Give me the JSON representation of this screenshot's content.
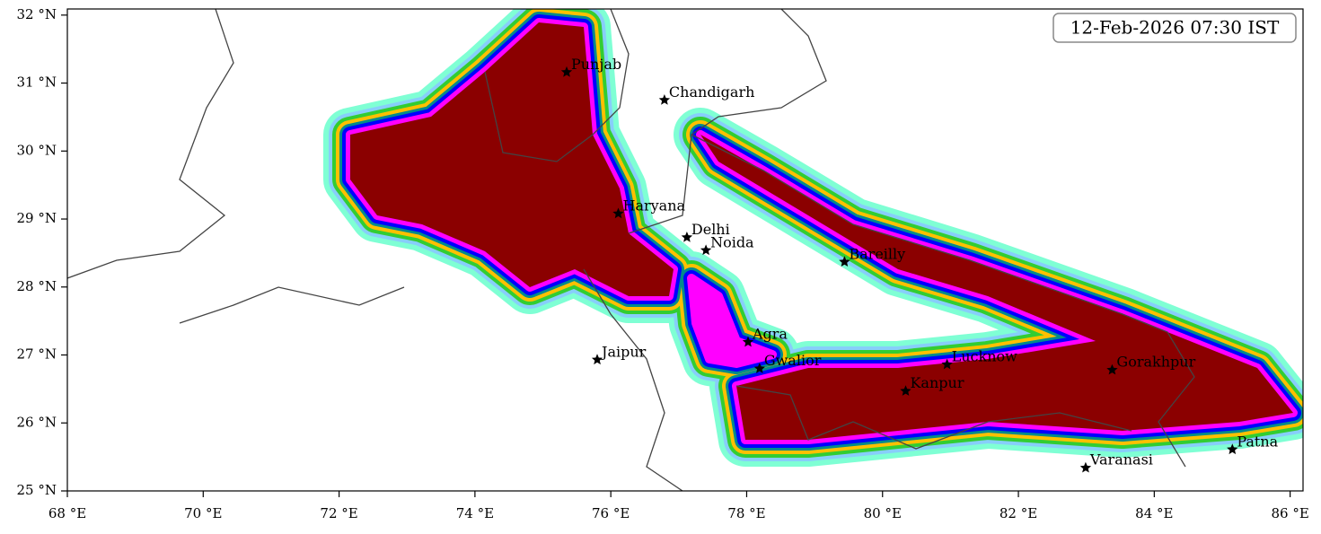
{
  "map": {
    "timestamp": "12-Feb-2026 07:30 IST",
    "xlim": [
      68,
      86.19
    ],
    "ylim": [
      25,
      32.09
    ],
    "xticks": [
      {
        "value": 68,
        "label": "68 °E"
      },
      {
        "value": 70,
        "label": "70 °E"
      },
      {
        "value": 72,
        "label": "72 °E"
      },
      {
        "value": 74,
        "label": "74 °E"
      },
      {
        "value": 76,
        "label": "76 °E"
      },
      {
        "value": 78,
        "label": "78 °E"
      },
      {
        "value": 80,
        "label": "80 °E"
      },
      {
        "value": 82,
        "label": "82 °E"
      },
      {
        "value": 84,
        "label": "84 °E"
      },
      {
        "value": 86,
        "label": "86 °E"
      }
    ],
    "yticks": [
      {
        "value": 25,
        "label": "25 °N"
      },
      {
        "value": 26,
        "label": "26 °N"
      },
      {
        "value": 27,
        "label": "27 °N"
      },
      {
        "value": 28,
        "label": "28 °N"
      },
      {
        "value": 29,
        "label": "29 °N"
      },
      {
        "value": 30,
        "label": "30 °N"
      },
      {
        "value": 31,
        "label": "31 °N"
      },
      {
        "value": 32,
        "label": "32 °N"
      }
    ],
    "cities": [
      {
        "name": "Punjab",
        "lon": 75.35,
        "lat": 31.16
      },
      {
        "name": "Chandigarh",
        "lon": 76.79,
        "lat": 30.75
      },
      {
        "name": "Haryana",
        "lon": 76.11,
        "lat": 29.08
      },
      {
        "name": "Delhi",
        "lon": 77.12,
        "lat": 28.73
      },
      {
        "name": "Noida",
        "lon": 77.4,
        "lat": 28.54
      },
      {
        "name": "Bareilly",
        "lon": 79.44,
        "lat": 28.37
      },
      {
        "name": "Jaipur",
        "lon": 75.8,
        "lat": 26.93
      },
      {
        "name": "Agra",
        "lon": 78.02,
        "lat": 27.19
      },
      {
        "name": "Gwalior",
        "lon": 78.19,
        "lat": 26.8
      },
      {
        "name": "Lucknow",
        "lon": 80.95,
        "lat": 26.86
      },
      {
        "name": "Kanpur",
        "lon": 80.34,
        "lat": 26.47
      },
      {
        "name": "Gorakhpur",
        "lon": 83.38,
        "lat": 26.78
      },
      {
        "name": "Varanasi",
        "lon": 82.99,
        "lat": 25.34
      },
      {
        "name": "Patna",
        "lon": 85.15,
        "lat": 25.61
      }
    ]
  }
}
